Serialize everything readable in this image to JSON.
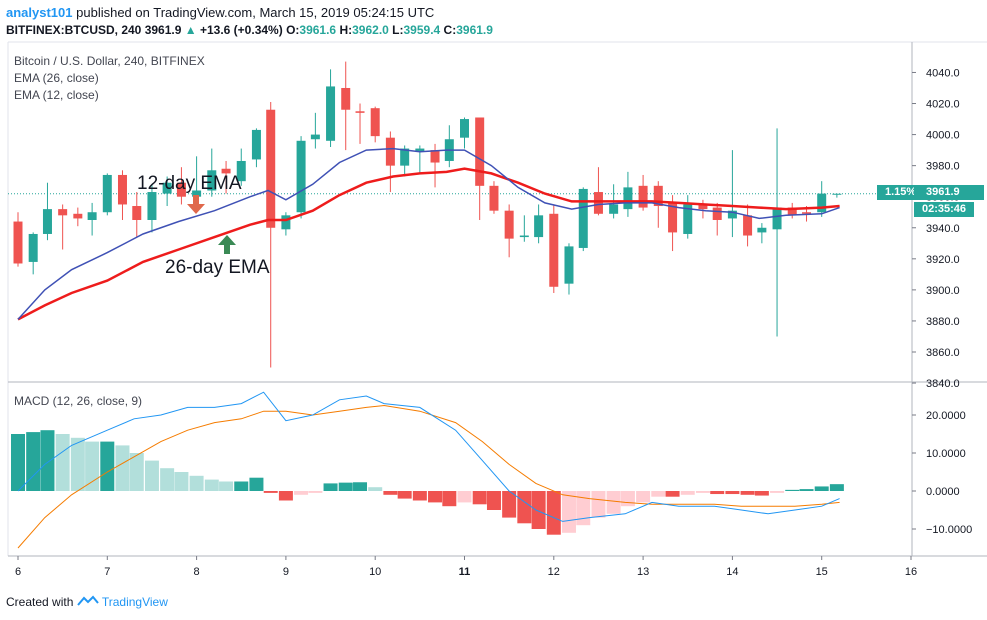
{
  "header": {
    "user": "analyst101",
    "published_text": "published on TradingView.com, March 15, 2019 05:24:15 UTC",
    "symbol": "BITFINEX:BTCUSD, 240",
    "last": "3961.9",
    "change": "+13.6 (+0.34%)",
    "o_label": "O:",
    "o_val": "3961.6",
    "h_label": "H:",
    "h_val": "3962.0",
    "l_label": "L:",
    "l_val": "3959.4",
    "c_label": "C:",
    "c_val": "3961.9"
  },
  "legend": {
    "title": "Bitcoin / U.S. Dollar, 240, BITFINEX",
    "ema26": "EMA (26, close)",
    "ema12": "EMA (12, close)",
    "macd": "MACD (12, 26, close, 9)"
  },
  "badges": {
    "percent": "1.15%",
    "price": "3961.9",
    "countdown": "02:35:46"
  },
  "annotations": {
    "ema12": "12-day EMA",
    "ema26": "26-day EMA"
  },
  "footer": {
    "created_with": "Created with",
    "brand": "TradingView"
  },
  "colors": {
    "up": "#26a69a",
    "down": "#ef5350",
    "ema12": "#3f51b5",
    "ema26": "#ee1c1c",
    "macd_line": "#2196f3",
    "signal_line": "#f57c00",
    "hist_up_strong": "#26a69a",
    "hist_up_weak": "#b2dfdb",
    "hist_down_strong": "#ef5350",
    "hist_down_weak": "#ffcdd2"
  },
  "chart_data": [
    {
      "type": "candlestick",
      "ylim": [
        3840,
        4060
      ],
      "y_ticks": [
        "4040.0",
        "4020.0",
        "4000.0",
        "3980.0",
        "3960.0",
        "3940.0",
        "3920.0",
        "3900.0",
        "3880.0",
        "3860.0",
        "3840.0"
      ],
      "x_ticks": [
        "6",
        "7",
        "8",
        "9",
        "10",
        "11",
        "12",
        "13",
        "14",
        "15",
        "16"
      ],
      "x_range": [
        6,
        16
      ],
      "candles": [
        {
          "t": 6.0,
          "o": 3944,
          "h": 3950,
          "l": 3915,
          "c": 3917
        },
        {
          "t": 6.17,
          "o": 3918,
          "h": 3937,
          "l": 3910,
          "c": 3936
        },
        {
          "t": 6.33,
          "o": 3936,
          "h": 3969,
          "l": 3932,
          "c": 3952
        },
        {
          "t": 6.5,
          "o": 3952,
          "h": 3955,
          "l": 3926,
          "c": 3948
        },
        {
          "t": 6.67,
          "o": 3949,
          "h": 3953,
          "l": 3941,
          "c": 3946
        },
        {
          "t": 6.83,
          "o": 3945,
          "h": 3956,
          "l": 3935,
          "c": 3950
        },
        {
          "t": 7.0,
          "o": 3950,
          "h": 3975,
          "l": 3948,
          "c": 3974
        },
        {
          "t": 7.17,
          "o": 3974,
          "h": 3977,
          "l": 3945,
          "c": 3955
        },
        {
          "t": 7.33,
          "o": 3954,
          "h": 3963,
          "l": 3934,
          "c": 3945
        },
        {
          "t": 7.5,
          "o": 3945,
          "h": 3968,
          "l": 3937,
          "c": 3963
        },
        {
          "t": 7.67,
          "o": 3962,
          "h": 3973,
          "l": 3954,
          "c": 3969
        },
        {
          "t": 7.83,
          "o": 3969,
          "h": 3979,
          "l": 3955,
          "c": 3960
        },
        {
          "t": 8.0,
          "o": 3960,
          "h": 3986,
          "l": 3952,
          "c": 3964
        },
        {
          "t": 8.17,
          "o": 3964,
          "h": 3991,
          "l": 3960,
          "c": 3977
        },
        {
          "t": 8.33,
          "o": 3978,
          "h": 3983,
          "l": 3962,
          "c": 3975
        },
        {
          "t": 8.5,
          "o": 3970,
          "h": 3991,
          "l": 3967,
          "c": 3983
        },
        {
          "t": 8.67,
          "o": 3984,
          "h": 4004,
          "l": 3979,
          "c": 4003
        },
        {
          "t": 8.83,
          "o": 4016,
          "h": 4021,
          "l": 3850,
          "c": 3940
        },
        {
          "t": 9.0,
          "o": 3939,
          "h": 3950,
          "l": 3935,
          "c": 3948
        },
        {
          "t": 9.17,
          "o": 3950,
          "h": 3999,
          "l": 3946,
          "c": 3996
        },
        {
          "t": 9.33,
          "o": 3997,
          "h": 4014,
          "l": 3991,
          "c": 4000
        },
        {
          "t": 9.5,
          "o": 3996,
          "h": 4042,
          "l": 3992,
          "c": 4031
        },
        {
          "t": 9.67,
          "o": 4030,
          "h": 4047,
          "l": 3990,
          "c": 4016
        },
        {
          "t": 9.83,
          "o": 4015,
          "h": 4020,
          "l": 3994,
          "c": 4014
        },
        {
          "t": 10.0,
          "o": 4017,
          "h": 4018,
          "l": 3995,
          "c": 3999
        },
        {
          "t": 10.17,
          "o": 3998,
          "h": 4002,
          "l": 3963,
          "c": 3980
        },
        {
          "t": 10.33,
          "o": 3980,
          "h": 3993,
          "l": 3973,
          "c": 3991
        },
        {
          "t": 10.5,
          "o": 3989,
          "h": 3993,
          "l": 3975,
          "c": 3991
        },
        {
          "t": 10.67,
          "o": 3990,
          "h": 3994,
          "l": 3966,
          "c": 3982
        },
        {
          "t": 10.83,
          "o": 3983,
          "h": 4006,
          "l": 3979,
          "c": 3997
        },
        {
          "t": 11.0,
          "o": 3998,
          "h": 4011,
          "l": 3991,
          "c": 4010
        },
        {
          "t": 11.17,
          "o": 4011,
          "h": 4011,
          "l": 3945,
          "c": 3967
        },
        {
          "t": 11.33,
          "o": 3967,
          "h": 3970,
          "l": 3949,
          "c": 3951
        },
        {
          "t": 11.5,
          "o": 3951,
          "h": 3955,
          "l": 3921,
          "c": 3933
        },
        {
          "t": 11.67,
          "o": 3934,
          "h": 3948,
          "l": 3931,
          "c": 3935
        },
        {
          "t": 11.83,
          "o": 3934,
          "h": 3955,
          "l": 3930,
          "c": 3948
        },
        {
          "t": 12.0,
          "o": 3949,
          "h": 3955,
          "l": 3898,
          "c": 3902
        },
        {
          "t": 12.17,
          "o": 3904,
          "h": 3930,
          "l": 3897,
          "c": 3928
        },
        {
          "t": 12.33,
          "o": 3927,
          "h": 3966,
          "l": 3925,
          "c": 3965
        },
        {
          "t": 12.5,
          "o": 3963,
          "h": 3979,
          "l": 3948,
          "c": 3949
        },
        {
          "t": 12.67,
          "o": 3949,
          "h": 3968,
          "l": 3946,
          "c": 3955
        },
        {
          "t": 12.83,
          "o": 3952,
          "h": 3976,
          "l": 3947,
          "c": 3966
        },
        {
          "t": 13.0,
          "o": 3967,
          "h": 3974,
          "l": 3951,
          "c": 3953
        },
        {
          "t": 13.17,
          "o": 3967,
          "h": 3970,
          "l": 3940,
          "c": 3954
        },
        {
          "t": 13.33,
          "o": 3956,
          "h": 3961,
          "l": 3925,
          "c": 3937
        },
        {
          "t": 13.5,
          "o": 3936,
          "h": 3961,
          "l": 3933,
          "c": 3955
        },
        {
          "t": 13.67,
          "o": 3955,
          "h": 3958,
          "l": 3946,
          "c": 3952
        },
        {
          "t": 13.83,
          "o": 3953,
          "h": 3956,
          "l": 3935,
          "c": 3945
        },
        {
          "t": 14.0,
          "o": 3946,
          "h": 3990,
          "l": 3934,
          "c": 3951
        },
        {
          "t": 14.17,
          "o": 3948,
          "h": 3955,
          "l": 3928,
          "c": 3935
        },
        {
          "t": 14.33,
          "o": 3937,
          "h": 3943,
          "l": 3930,
          "c": 3940
        },
        {
          "t": 14.5,
          "o": 3939,
          "h": 4004,
          "l": 3870,
          "c": 3953
        },
        {
          "t": 14.67,
          "o": 3953,
          "h": 3956,
          "l": 3946,
          "c": 3948
        },
        {
          "t": 14.83,
          "o": 3950,
          "h": 3954,
          "l": 3944,
          "c": 3949
        },
        {
          "t": 15.0,
          "o": 3950,
          "h": 3970,
          "l": 3947,
          "c": 3962
        },
        {
          "t": 15.17,
          "o": 3961.6,
          "h": 3962.0,
          "l": 3959.4,
          "c": 3961.9
        }
      ],
      "ema12": [
        [
          6.0,
          3881
        ],
        [
          6.3,
          3900
        ],
        [
          6.6,
          3913
        ],
        [
          7.0,
          3924
        ],
        [
          7.4,
          3936
        ],
        [
          7.8,
          3944
        ],
        [
          8.2,
          3951
        ],
        [
          8.6,
          3960
        ],
        [
          8.8,
          3964
        ],
        [
          9.0,
          3958
        ],
        [
          9.3,
          3968
        ],
        [
          9.6,
          3982
        ],
        [
          9.9,
          3990
        ],
        [
          10.2,
          3991
        ],
        [
          10.5,
          3989
        ],
        [
          10.8,
          3990
        ],
        [
          11.0,
          3990
        ],
        [
          11.3,
          3980
        ],
        [
          11.6,
          3966
        ],
        [
          11.9,
          3956
        ],
        [
          12.2,
          3952
        ],
        [
          12.5,
          3955
        ],
        [
          12.8,
          3956
        ],
        [
          13.1,
          3956
        ],
        [
          13.4,
          3953
        ],
        [
          13.7,
          3951
        ],
        [
          14.0,
          3950
        ],
        [
          14.3,
          3946
        ],
        [
          14.6,
          3948
        ],
        [
          15.0,
          3949
        ],
        [
          15.2,
          3953
        ]
      ],
      "ema26": [
        [
          6.0,
          3881
        ],
        [
          6.3,
          3890
        ],
        [
          6.6,
          3898
        ],
        [
          7.0,
          3906
        ],
        [
          7.4,
          3918
        ],
        [
          7.8,
          3926
        ],
        [
          8.2,
          3934
        ],
        [
          8.6,
          3942
        ],
        [
          8.8,
          3945
        ],
        [
          9.0,
          3945
        ],
        [
          9.3,
          3951
        ],
        [
          9.6,
          3961
        ],
        [
          9.9,
          3969
        ],
        [
          10.2,
          3973
        ],
        [
          10.5,
          3975
        ],
        [
          10.8,
          3976
        ],
        [
          11.0,
          3978
        ],
        [
          11.3,
          3975
        ],
        [
          11.6,
          3969
        ],
        [
          11.9,
          3962
        ],
        [
          12.2,
          3957
        ],
        [
          12.5,
          3957
        ],
        [
          12.8,
          3957
        ],
        [
          13.1,
          3957
        ],
        [
          13.4,
          3956
        ],
        [
          13.7,
          3955
        ],
        [
          14.0,
          3954
        ],
        [
          14.3,
          3953
        ],
        [
          14.6,
          3952
        ],
        [
          15.0,
          3953
        ],
        [
          15.2,
          3954
        ]
      ],
      "last_price": 3961.9
    },
    {
      "type": "macd",
      "ylim": [
        -15,
        26
      ],
      "y_ticks": [
        "20.0000",
        "10.0000",
        "0.0000",
        "−10.0000"
      ],
      "macd_line": [
        [
          6.0,
          0
        ],
        [
          6.3,
          7
        ],
        [
          6.6,
          12
        ],
        [
          7.0,
          16
        ],
        [
          7.3,
          19
        ],
        [
          7.6,
          20
        ],
        [
          7.9,
          22
        ],
        [
          8.2,
          22
        ],
        [
          8.5,
          23
        ],
        [
          8.75,
          26
        ],
        [
          9.0,
          18.5
        ],
        [
          9.3,
          20
        ],
        [
          9.6,
          24
        ],
        [
          9.9,
          25
        ],
        [
          10.1,
          23
        ],
        [
          10.5,
          22
        ],
        [
          10.9,
          16
        ],
        [
          11.2,
          8
        ],
        [
          11.5,
          0
        ],
        [
          11.8,
          -5
        ],
        [
          12.1,
          -8
        ],
        [
          12.4,
          -7
        ],
        [
          12.8,
          -6
        ],
        [
          13.1,
          -3
        ],
        [
          13.4,
          -4
        ],
        [
          13.8,
          -4
        ],
        [
          14.1,
          -5
        ],
        [
          14.4,
          -6
        ],
        [
          14.7,
          -5
        ],
        [
          15.0,
          -4
        ],
        [
          15.2,
          -2
        ]
      ],
      "signal_line": [
        [
          6.0,
          -15
        ],
        [
          6.3,
          -7
        ],
        [
          6.6,
          -1
        ],
        [
          7.0,
          5
        ],
        [
          7.3,
          9
        ],
        [
          7.6,
          13
        ],
        [
          7.9,
          16
        ],
        [
          8.2,
          18
        ],
        [
          8.5,
          19
        ],
        [
          8.75,
          21
        ],
        [
          9.0,
          21
        ],
        [
          9.3,
          20
        ],
        [
          9.6,
          21
        ],
        [
          9.9,
          22
        ],
        [
          10.1,
          22.5
        ],
        [
          10.5,
          21
        ],
        [
          10.9,
          18
        ],
        [
          11.2,
          13
        ],
        [
          11.5,
          7
        ],
        [
          11.8,
          2
        ],
        [
          12.1,
          -1
        ],
        [
          12.4,
          -2
        ],
        [
          12.8,
          -3
        ],
        [
          13.1,
          -3.5
        ],
        [
          13.4,
          -3.5
        ],
        [
          13.8,
          -3.5
        ],
        [
          14.1,
          -4
        ],
        [
          14.4,
          -4
        ],
        [
          14.7,
          -4
        ],
        [
          15.0,
          -3.5
        ],
        [
          15.2,
          -3
        ]
      ],
      "histogram": [
        {
          "t": 6.0,
          "v": 15
        },
        {
          "t": 6.17,
          "v": 15.5
        },
        {
          "t": 6.33,
          "v": 16
        },
        {
          "t": 6.5,
          "v": 15
        },
        {
          "t": 6.67,
          "v": 14
        },
        {
          "t": 6.83,
          "v": 13
        },
        {
          "t": 7.0,
          "v": 13
        },
        {
          "t": 7.17,
          "v": 12
        },
        {
          "t": 7.33,
          "v": 10
        },
        {
          "t": 7.5,
          "v": 8
        },
        {
          "t": 7.67,
          "v": 6
        },
        {
          "t": 7.83,
          "v": 5
        },
        {
          "t": 8.0,
          "v": 4
        },
        {
          "t": 8.17,
          "v": 3
        },
        {
          "t": 8.33,
          "v": 2.5
        },
        {
          "t": 8.5,
          "v": 2.5
        },
        {
          "t": 8.67,
          "v": 3.5
        },
        {
          "t": 8.83,
          "v": -0.5
        },
        {
          "t": 9.0,
          "v": -2.5
        },
        {
          "t": 9.17,
          "v": -1
        },
        {
          "t": 9.33,
          "v": -0.5
        },
        {
          "t": 9.5,
          "v": 2
        },
        {
          "t": 9.67,
          "v": 2.2
        },
        {
          "t": 9.83,
          "v": 2.3
        },
        {
          "t": 10.0,
          "v": 1
        },
        {
          "t": 10.17,
          "v": -1
        },
        {
          "t": 10.33,
          "v": -2
        },
        {
          "t": 10.5,
          "v": -2.5
        },
        {
          "t": 10.67,
          "v": -3
        },
        {
          "t": 10.83,
          "v": -4
        },
        {
          "t": 11.0,
          "v": -3
        },
        {
          "t": 11.17,
          "v": -3.5
        },
        {
          "t": 11.33,
          "v": -5
        },
        {
          "t": 11.5,
          "v": -7
        },
        {
          "t": 11.67,
          "v": -8.5
        },
        {
          "t": 11.83,
          "v": -10
        },
        {
          "t": 12.0,
          "v": -11.5
        },
        {
          "t": 12.17,
          "v": -11
        },
        {
          "t": 12.33,
          "v": -9
        },
        {
          "t": 12.5,
          "v": -7
        },
        {
          "t": 12.67,
          "v": -6
        },
        {
          "t": 12.83,
          "v": -4
        },
        {
          "t": 13.0,
          "v": -3
        },
        {
          "t": 13.17,
          "v": -1.5
        },
        {
          "t": 13.33,
          "v": -1.5
        },
        {
          "t": 13.5,
          "v": -1
        },
        {
          "t": 13.67,
          "v": -0.5
        },
        {
          "t": 13.83,
          "v": -0.8
        },
        {
          "t": 14.0,
          "v": -0.8
        },
        {
          "t": 14.17,
          "v": -1
        },
        {
          "t": 14.33,
          "v": -1.2
        },
        {
          "t": 14.5,
          "v": -0.5
        },
        {
          "t": 14.67,
          "v": 0.3
        },
        {
          "t": 14.83,
          "v": 0.5
        },
        {
          "t": 15.0,
          "v": 1.2
        },
        {
          "t": 15.17,
          "v": 1.8
        }
      ]
    }
  ]
}
